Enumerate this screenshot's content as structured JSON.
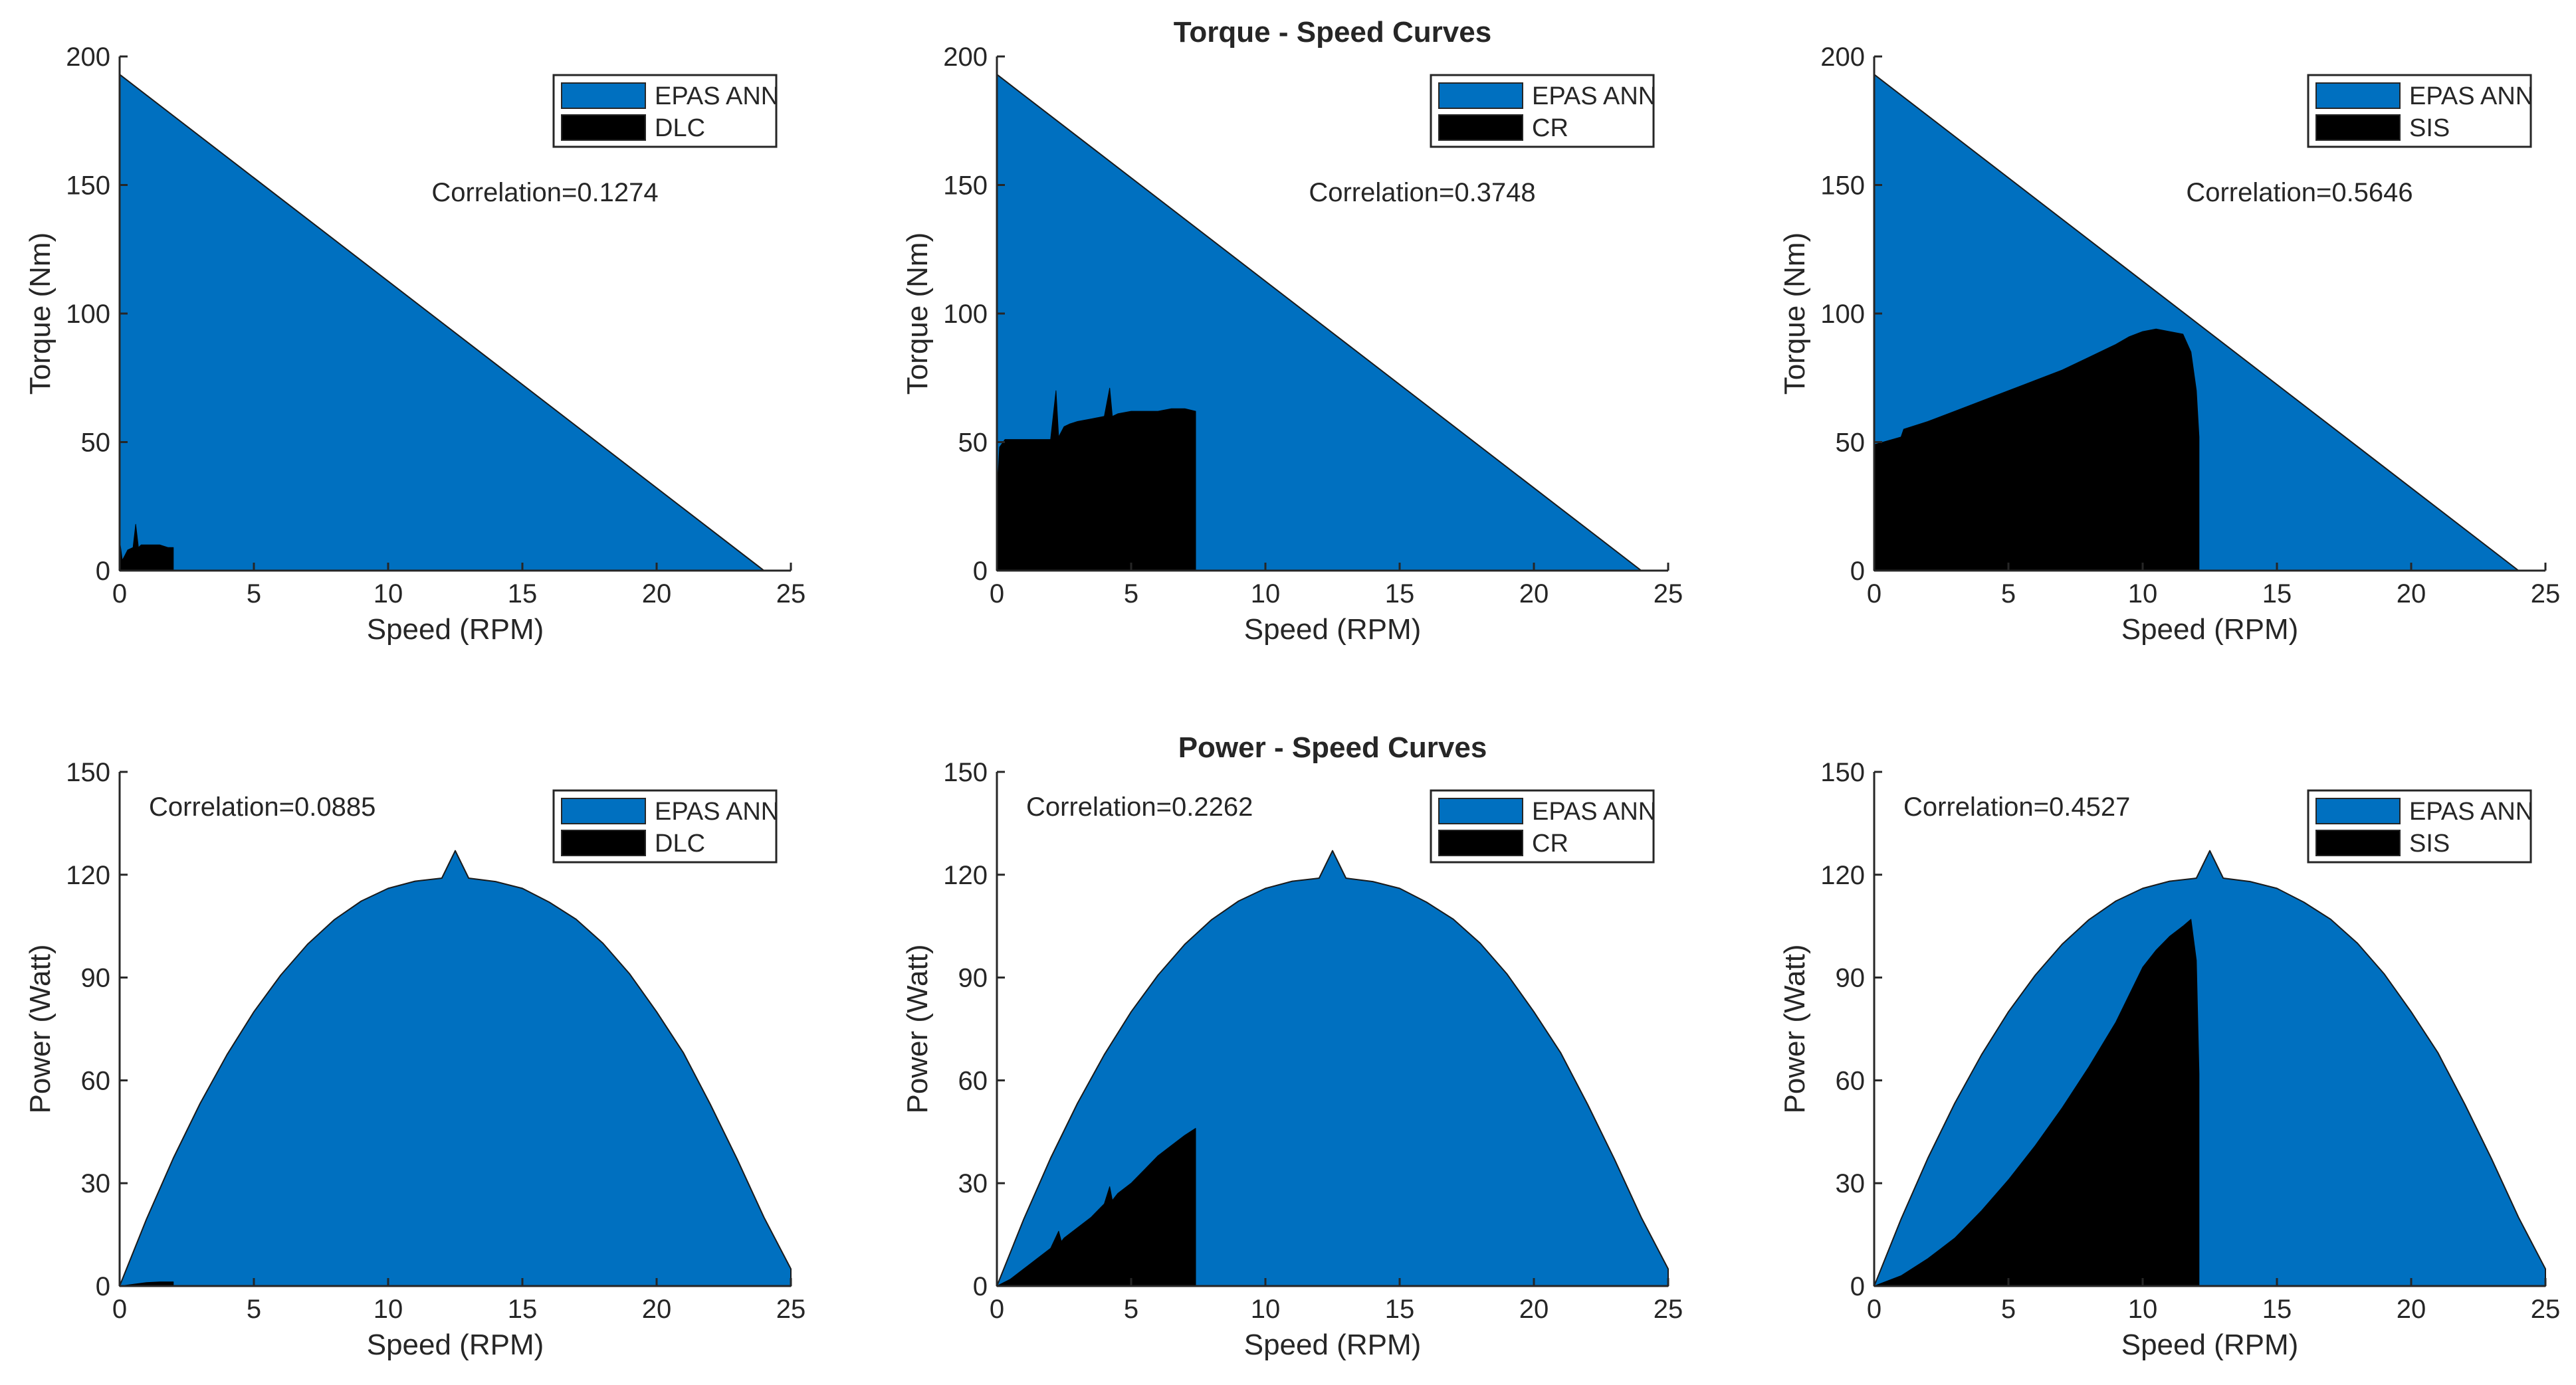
{
  "colors": {
    "epas": "#0070c0",
    "test": "#000000",
    "axis": "#262626",
    "background": "#ffffff"
  },
  "chart_data": [
    {
      "type": "area",
      "row": "torque",
      "column": 0,
      "title": "",
      "xlabel": "Speed (RPM)",
      "ylabel": "Torque (Nm)",
      "xlim": [
        0,
        25
      ],
      "ylim": [
        0,
        200
      ],
      "xticks": [
        0,
        5,
        10,
        15,
        20,
        25
      ],
      "yticks": [
        0,
        50,
        100,
        150,
        200
      ],
      "annotation": "Correlation=0.1274",
      "legend_position": "top-right",
      "series": [
        {
          "name": "EPAS ANN",
          "color": "#0070c0",
          "x": [
            0,
            24
          ],
          "y": [
            193,
            0
          ]
        },
        {
          "name": "DLC",
          "color": "#000000",
          "x": [
            0,
            0,
            0.1,
            0.2,
            0.3,
            0.5,
            0.6,
            0.7,
            0.8,
            1.0,
            1.2,
            1.5,
            1.8,
            2.0,
            2.0
          ],
          "y": [
            0,
            12,
            4,
            6,
            8,
            9,
            18,
            9,
            10,
            10,
            10,
            10,
            9,
            9,
            0
          ]
        }
      ]
    },
    {
      "type": "area",
      "row": "torque",
      "column": 1,
      "title": "Torque - Speed Curves",
      "xlabel": "Speed (RPM)",
      "ylabel": "Torque (Nm)",
      "xlim": [
        0,
        25
      ],
      "ylim": [
        0,
        200
      ],
      "xticks": [
        0,
        5,
        10,
        15,
        20,
        25
      ],
      "yticks": [
        0,
        50,
        100,
        150,
        200
      ],
      "annotation": "Correlation=0.3748",
      "legend_position": "top-right",
      "series": [
        {
          "name": "EPAS ANN",
          "color": "#0070c0",
          "x": [
            0,
            24
          ],
          "y": [
            193,
            0
          ]
        },
        {
          "name": "CR",
          "color": "#000000",
          "x": [
            0,
            0,
            0.1,
            0.3,
            1.0,
            2.0,
            2.2,
            2.3,
            2.5,
            2.7,
            3.0,
            3.5,
            4.0,
            4.2,
            4.3,
            4.5,
            5.0,
            6.0,
            6.5,
            7.0,
            7.4,
            7.4
          ],
          "y": [
            0,
            28,
            48,
            51,
            51,
            51,
            70,
            52,
            56,
            57,
            58,
            59,
            60,
            71,
            60,
            61,
            62,
            62,
            63,
            63,
            62,
            0
          ]
        }
      ]
    },
    {
      "type": "area",
      "row": "torque",
      "column": 2,
      "title": "",
      "xlabel": "Speed (RPM)",
      "ylabel": "Torque (Nm)",
      "xlim": [
        0,
        25
      ],
      "ylim": [
        0,
        200
      ],
      "xticks": [
        0,
        5,
        10,
        15,
        20,
        25
      ],
      "yticks": [
        0,
        50,
        100,
        150,
        200
      ],
      "annotation": "Correlation=0.5646",
      "legend_position": "top-right",
      "series": [
        {
          "name": "EPAS ANN",
          "color": "#0070c0",
          "x": [
            0,
            24
          ],
          "y": [
            193,
            0
          ]
        },
        {
          "name": "SIS",
          "color": "#000000",
          "x": [
            0,
            0,
            1,
            1.1,
            2,
            3,
            4,
            5,
            6,
            7,
            8,
            9,
            9.5,
            10,
            10.5,
            11,
            11.5,
            11.8,
            12.0,
            12.1,
            12.1
          ],
          "y": [
            0,
            49,
            52,
            55,
            58,
            62,
            66,
            70,
            74,
            78,
            83,
            88,
            91,
            93,
            94,
            93,
            92,
            85,
            70,
            52,
            0
          ]
        }
      ]
    },
    {
      "type": "area",
      "row": "power",
      "column": 0,
      "title": "",
      "xlabel": "Speed (RPM)",
      "ylabel": "Power (Watt)",
      "xlim": [
        0,
        25
      ],
      "ylim": [
        0,
        150
      ],
      "xticks": [
        0,
        5,
        10,
        15,
        20,
        25
      ],
      "yticks": [
        0,
        30,
        60,
        90,
        120,
        150
      ],
      "annotation": "Correlation=0.0885",
      "legend_position": "top-right",
      "series": [
        {
          "name": "EPAS ANN",
          "color": "#0070c0",
          "x": [
            0,
            1,
            2,
            3,
            4,
            5,
            6,
            7,
            8,
            9,
            10,
            11,
            12,
            12.5,
            13,
            14,
            15,
            16,
            17,
            18,
            19,
            20,
            21,
            22,
            23,
            24,
            25
          ],
          "y": [
            0,
            19.5,
            37.3,
            53.3,
            67.5,
            80,
            90.7,
            99.7,
            106.9,
            112.3,
            116,
            118.1,
            119,
            127,
            119,
            118,
            116,
            112,
            107,
            100,
            91,
            80,
            68,
            53,
            37,
            20,
            5
          ]
        },
        {
          "name": "DLC",
          "color": "#000000",
          "x": [
            0,
            0.5,
            1.0,
            1.5,
            2.0,
            2.0
          ],
          "y": [
            0,
            0.5,
            1.0,
            1.2,
            1.2,
            0
          ]
        }
      ]
    },
    {
      "type": "area",
      "row": "power",
      "column": 1,
      "title": "Power - Speed Curves",
      "xlabel": "Speed (RPM)",
      "ylabel": "Power (Watt)",
      "xlim": [
        0,
        25
      ],
      "ylim": [
        0,
        150
      ],
      "xticks": [
        0,
        5,
        10,
        15,
        20,
        25
      ],
      "yticks": [
        0,
        30,
        60,
        90,
        120,
        150
      ],
      "annotation": "Correlation=0.2262",
      "legend_position": "top-right",
      "series": [
        {
          "name": "EPAS ANN",
          "color": "#0070c0",
          "x": [
            0,
            1,
            2,
            3,
            4,
            5,
            6,
            7,
            8,
            9,
            10,
            11,
            12,
            12.5,
            13,
            14,
            15,
            16,
            17,
            18,
            19,
            20,
            21,
            22,
            23,
            24,
            25
          ],
          "y": [
            0,
            19.5,
            37.3,
            53.3,
            67.5,
            80,
            90.7,
            99.7,
            106.9,
            112.3,
            116,
            118.1,
            119,
            127,
            119,
            118,
            116,
            112,
            107,
            100,
            91,
            80,
            68,
            53,
            37,
            20,
            5
          ]
        },
        {
          "name": "CR",
          "color": "#000000",
          "x": [
            0,
            0.5,
            1.0,
            1.5,
            2.0,
            2.3,
            2.4,
            2.5,
            3.0,
            3.5,
            4.0,
            4.2,
            4.3,
            4.5,
            5.0,
            5.5,
            6.0,
            6.5,
            7.0,
            7.4,
            7.4
          ],
          "y": [
            0,
            2,
            5,
            8,
            11,
            16,
            13,
            14,
            17,
            20,
            24,
            29,
            25,
            27,
            30,
            34,
            38,
            41,
            44,
            46,
            0
          ]
        }
      ]
    },
    {
      "type": "area",
      "row": "power",
      "column": 2,
      "title": "",
      "xlabel": "Speed (RPM)",
      "ylabel": "Power (Watt)",
      "xlim": [
        0,
        25
      ],
      "ylim": [
        0,
        150
      ],
      "xticks": [
        0,
        5,
        10,
        15,
        20,
        25
      ],
      "yticks": [
        0,
        30,
        60,
        90,
        120,
        150
      ],
      "annotation": "Correlation=0.4527",
      "legend_position": "top-right",
      "series": [
        {
          "name": "EPAS ANN",
          "color": "#0070c0",
          "x": [
            0,
            1,
            2,
            3,
            4,
            5,
            6,
            7,
            8,
            9,
            10,
            11,
            12,
            12.5,
            13,
            14,
            15,
            16,
            17,
            18,
            19,
            20,
            21,
            22,
            23,
            24,
            25
          ],
          "y": [
            0,
            19.5,
            37.3,
            53.3,
            67.5,
            80,
            90.7,
            99.7,
            106.9,
            112.3,
            116,
            118.1,
            119,
            127,
            119,
            118,
            116,
            112,
            107,
            100,
            91,
            80,
            68,
            53,
            37,
            20,
            5
          ]
        },
        {
          "name": "SIS",
          "color": "#000000",
          "x": [
            0,
            1,
            2,
            3,
            4,
            5,
            6,
            7,
            8,
            9,
            9.5,
            10,
            10.5,
            11,
            11.5,
            11.8,
            12.0,
            12.1,
            12.1
          ],
          "y": [
            0,
            3,
            8,
            14,
            22,
            31,
            41,
            52,
            64,
            77,
            85,
            93,
            98,
            102,
            105,
            107,
            95,
            62,
            0
          ]
        }
      ]
    }
  ]
}
